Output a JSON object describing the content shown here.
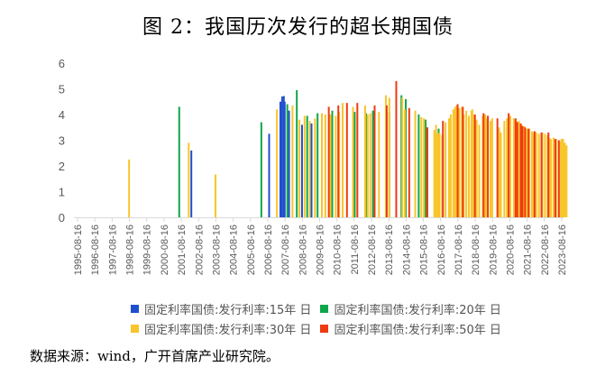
{
  "title": "图 2：我国历次发行的超长期国债",
  "source": "数据来源：wind，广开首席产业研究院。",
  "legend": [
    {
      "label": "固定利率国债:发行利率:15年 日",
      "color": "#1f4fcf"
    },
    {
      "label": "固定利率国债:发行利率:20年 日",
      "color": "#0fa64b"
    },
    {
      "label": "固定利率国债:发行利率:30年 日",
      "color": "#f8c52a"
    },
    {
      "label": "固定利率国债:发行利率:50年 日",
      "color": "#ee3a12"
    }
  ],
  "chart_data": {
    "type": "bar",
    "title": "图 2：我国历次发行的超长期国债",
    "xlabel": "",
    "ylabel": "",
    "ylim": [
      0,
      6
    ],
    "yticks": [
      0,
      1,
      2,
      3,
      4,
      5,
      6
    ],
    "grid": false,
    "legend_position": "bottom",
    "x_tick_labels": [
      "1995-08-16",
      "1996-08-16",
      "1997-08-16",
      "1998-08-16",
      "1999-08-16",
      "2000-08-16",
      "2001-08-16",
      "2002-08-16",
      "2003-08-16",
      "2004-08-16",
      "2005-08-16",
      "2006-08-16",
      "2007-08-16",
      "2008-08-16",
      "2009-08-16",
      "2010-08-16",
      "2011-08-16",
      "2012-08-16",
      "2013-08-16",
      "2014-08-16",
      "2015-08-16",
      "2016-08-16",
      "2017-08-16",
      "2018-08-16",
      "2019-08-16",
      "2020-08-16",
      "2021-08-16",
      "2022-08-16",
      "2023-08-16"
    ],
    "series": [
      {
        "name": "固定利率国债:发行利率:15年 日",
        "color": "#1f4fcf",
        "points": [
          [
            2002.2,
            2.6
          ],
          [
            2006.7,
            3.25
          ],
          [
            2007.35,
            4.5
          ],
          [
            2007.45,
            4.7
          ],
          [
            2007.55,
            4.72
          ],
          [
            2007.6,
            4.5
          ],
          [
            2007.85,
            4.15
          ],
          [
            2008.6,
            3.6
          ],
          [
            2009.15,
            3.65
          ]
        ]
      },
      {
        "name": "固定利率国债:发行利率:20年 日",
        "color": "#0fa64b",
        "points": [
          [
            2001.5,
            4.3
          ],
          [
            2006.25,
            3.7
          ],
          [
            2007.75,
            4.4
          ],
          [
            2008.3,
            4.95
          ],
          [
            2008.9,
            3.95
          ],
          [
            2009.5,
            4.05
          ],
          [
            2010.35,
            4.15
          ],
          [
            2011.65,
            4.1
          ],
          [
            2012.3,
            4.05
          ],
          [
            2012.7,
            4.15
          ],
          [
            2013.65,
            4.1
          ],
          [
            2014.35,
            4.75
          ],
          [
            2014.6,
            4.6
          ],
          [
            2015.35,
            4.0
          ],
          [
            2015.75,
            3.8
          ],
          [
            2016.5,
            3.45
          ]
        ]
      },
      {
        "name": "固定利率国债:发行利率:30年 日",
        "color": "#f8c52a",
        "points": [
          [
            1998.6,
            2.25
          ],
          [
            2002.05,
            2.9
          ],
          [
            2003.6,
            1.67
          ],
          [
            2007.15,
            4.2
          ],
          [
            2008.05,
            4.35
          ],
          [
            2008.45,
            3.8
          ],
          [
            2008.75,
            3.95
          ],
          [
            2009.05,
            3.75
          ],
          [
            2009.35,
            3.85
          ],
          [
            2009.75,
            4.05
          ],
          [
            2009.95,
            4.0
          ],
          [
            2010.25,
            4.0
          ],
          [
            2010.55,
            3.95
          ],
          [
            2010.75,
            4.1
          ],
          [
            2010.95,
            4.45
          ],
          [
            2011.55,
            4.3
          ],
          [
            2012.25,
            4.35
          ],
          [
            2012.4,
            4.0
          ],
          [
            2012.55,
            4.05
          ],
          [
            2013.05,
            4.1
          ],
          [
            2013.45,
            4.75
          ],
          [
            2013.65,
            4.65
          ],
          [
            2014.4,
            4.65
          ],
          [
            2014.55,
            4.2
          ],
          [
            2015.15,
            4.15
          ],
          [
            2015.5,
            3.9
          ],
          [
            2015.65,
            3.85
          ],
          [
            2016.25,
            3.4
          ],
          [
            2016.35,
            3.6
          ],
          [
            2016.45,
            3.25
          ],
          [
            2016.55,
            3.3
          ],
          [
            2016.7,
            3.2
          ],
          [
            2016.9,
            3.7
          ],
          [
            2017.1,
            3.85
          ],
          [
            2017.2,
            4.0
          ],
          [
            2017.35,
            4.2
          ],
          [
            2017.45,
            4.3
          ],
          [
            2017.55,
            4.35
          ],
          [
            2017.7,
            4.25
          ],
          [
            2017.85,
            4.3
          ],
          [
            2017.95,
            4.0
          ],
          [
            2018.1,
            4.15
          ],
          [
            2018.25,
            3.95
          ],
          [
            2018.4,
            4.15
          ],
          [
            2018.45,
            4.2
          ],
          [
            2018.55,
            4.0
          ],
          [
            2018.7,
            3.8
          ],
          [
            2018.85,
            3.6
          ],
          [
            2019.05,
            3.95
          ],
          [
            2019.2,
            4.0
          ],
          [
            2019.3,
            3.85
          ],
          [
            2019.5,
            3.75
          ],
          [
            2019.6,
            3.85
          ],
          [
            2020.0,
            3.5
          ],
          [
            2020.1,
            3.3
          ],
          [
            2020.3,
            3.75
          ],
          [
            2020.45,
            3.85
          ],
          [
            2020.65,
            3.95
          ],
          [
            2020.85,
            3.85
          ],
          [
            2021.0,
            3.75
          ],
          [
            2021.15,
            3.75
          ],
          [
            2021.3,
            3.6
          ],
          [
            2021.45,
            3.55
          ],
          [
            2021.6,
            3.45
          ],
          [
            2021.75,
            3.45
          ],
          [
            2021.9,
            3.35
          ],
          [
            2022.0,
            3.3
          ],
          [
            2022.15,
            3.3
          ],
          [
            2022.3,
            3.25
          ],
          [
            2022.5,
            3.3
          ],
          [
            2022.65,
            3.25
          ],
          [
            2022.8,
            3.2
          ],
          [
            2022.9,
            3.1
          ],
          [
            2023.0,
            3.05
          ],
          [
            2023.15,
            3.1
          ],
          [
            2023.3,
            3.05
          ],
          [
            2023.5,
            2.95
          ],
          [
            2023.6,
            3.05
          ],
          [
            2023.7,
            3.05
          ],
          [
            2023.8,
            2.9
          ],
          [
            2023.9,
            2.8
          ]
        ]
      },
      {
        "name": "固定利率国债:发行利率:50年 日",
        "color": "#ee3a12",
        "points": [
          [
            2010.15,
            4.3
          ],
          [
            2010.7,
            4.35
          ],
          [
            2011.2,
            4.45
          ],
          [
            2011.8,
            4.45
          ],
          [
            2012.8,
            4.35
          ],
          [
            2013.5,
            4.35
          ],
          [
            2014.05,
            5.3
          ],
          [
            2014.8,
            4.25
          ],
          [
            2015.85,
            3.5
          ],
          [
            2016.75,
            3.75
          ],
          [
            2017.6,
            4.4
          ],
          [
            2017.9,
            4.3
          ],
          [
            2018.6,
            4.0
          ],
          [
            2019.1,
            4.05
          ],
          [
            2019.35,
            3.95
          ],
          [
            2019.9,
            3.85
          ],
          [
            2020.55,
            4.05
          ],
          [
            2020.95,
            3.85
          ],
          [
            2021.05,
            3.7
          ],
          [
            2021.25,
            3.65
          ],
          [
            2021.35,
            3.55
          ],
          [
            2021.5,
            3.5
          ],
          [
            2021.7,
            3.45
          ],
          [
            2022.05,
            3.35
          ],
          [
            2022.45,
            3.3
          ],
          [
            2022.85,
            3.3
          ],
          [
            2023.25,
            3.05
          ],
          [
            2023.45,
            3.0
          ]
        ]
      }
    ]
  }
}
